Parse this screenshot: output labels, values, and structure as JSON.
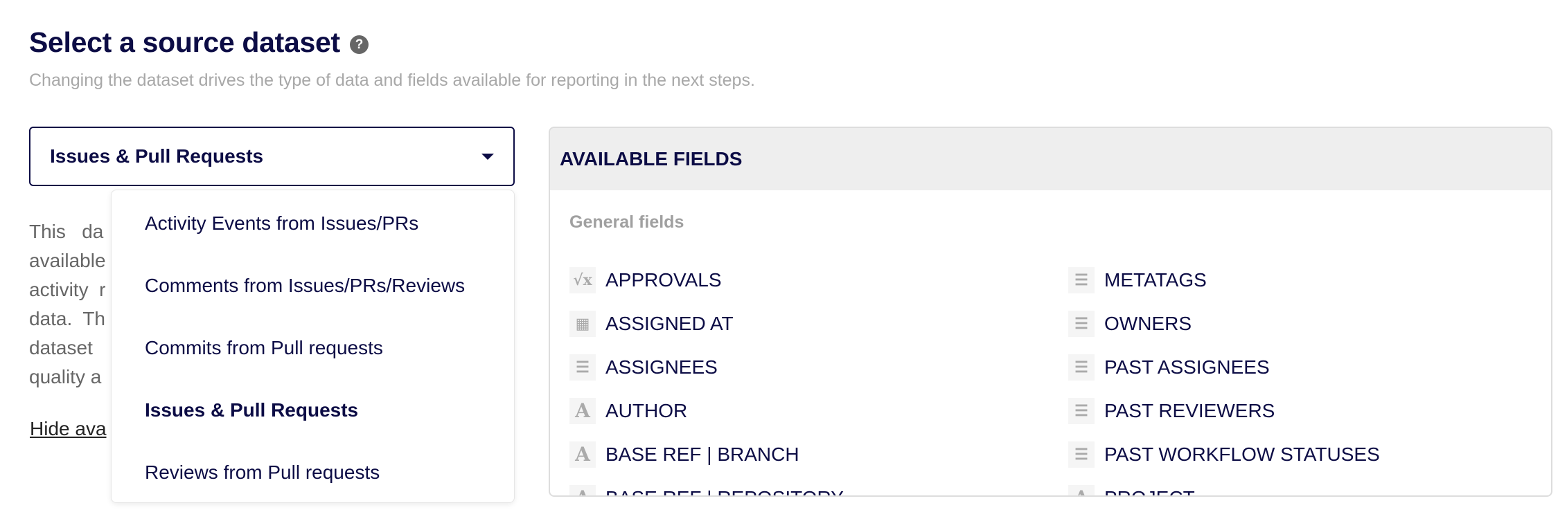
{
  "header": {
    "title": "Select a source dataset",
    "help_icon": "question-circle-icon",
    "subtitle": "Changing the dataset drives the type of data and fields available for reporting in the next steps."
  },
  "dataset_select": {
    "value": "Issues & Pull Requests"
  },
  "description_visible_fragments": [
    "This   da",
    "available",
    "activity  r",
    "data.  Th",
    "dataset",
    "quality a"
  ],
  "hide_link": "Hide ava",
  "menu": {
    "options": [
      {
        "label": "Activity Events from Issues/PRs",
        "selected": false
      },
      {
        "label": "Comments from Issues/PRs/Reviews",
        "selected": false
      },
      {
        "label": "Commits from Pull requests",
        "selected": false
      },
      {
        "label": "Issues & Pull Requests",
        "selected": true
      },
      {
        "label": "Reviews from Pull requests",
        "selected": false
      }
    ]
  },
  "panel": {
    "title": "AVAILABLE FIELDS",
    "group": "General fields",
    "left": [
      {
        "label": "APPROVALS",
        "icon": "formula-icon"
      },
      {
        "label": "ASSIGNED AT",
        "icon": "calendar-icon"
      },
      {
        "label": "ASSIGNEES",
        "icon": "list-icon"
      },
      {
        "label": "AUTHOR",
        "icon": "text-icon"
      },
      {
        "label": "BASE REF | BRANCH",
        "icon": "text-icon"
      },
      {
        "label": "BASE REF | REPOSITORY",
        "icon": "text-icon"
      }
    ],
    "right": [
      {
        "label": "METATAGS",
        "icon": "list-icon"
      },
      {
        "label": "OWNERS",
        "icon": "list-icon"
      },
      {
        "label": "PAST ASSIGNEES",
        "icon": "list-icon"
      },
      {
        "label": "PAST REVIEWERS",
        "icon": "list-icon"
      },
      {
        "label": "PAST WORKFLOW STATUSES",
        "icon": "list-icon"
      },
      {
        "label": "PROJECT",
        "icon": "text-icon"
      }
    ]
  },
  "colors": {
    "text": "#0c0c45",
    "muted": "#a8a8a8",
    "panel_header": "#eeeeee"
  }
}
